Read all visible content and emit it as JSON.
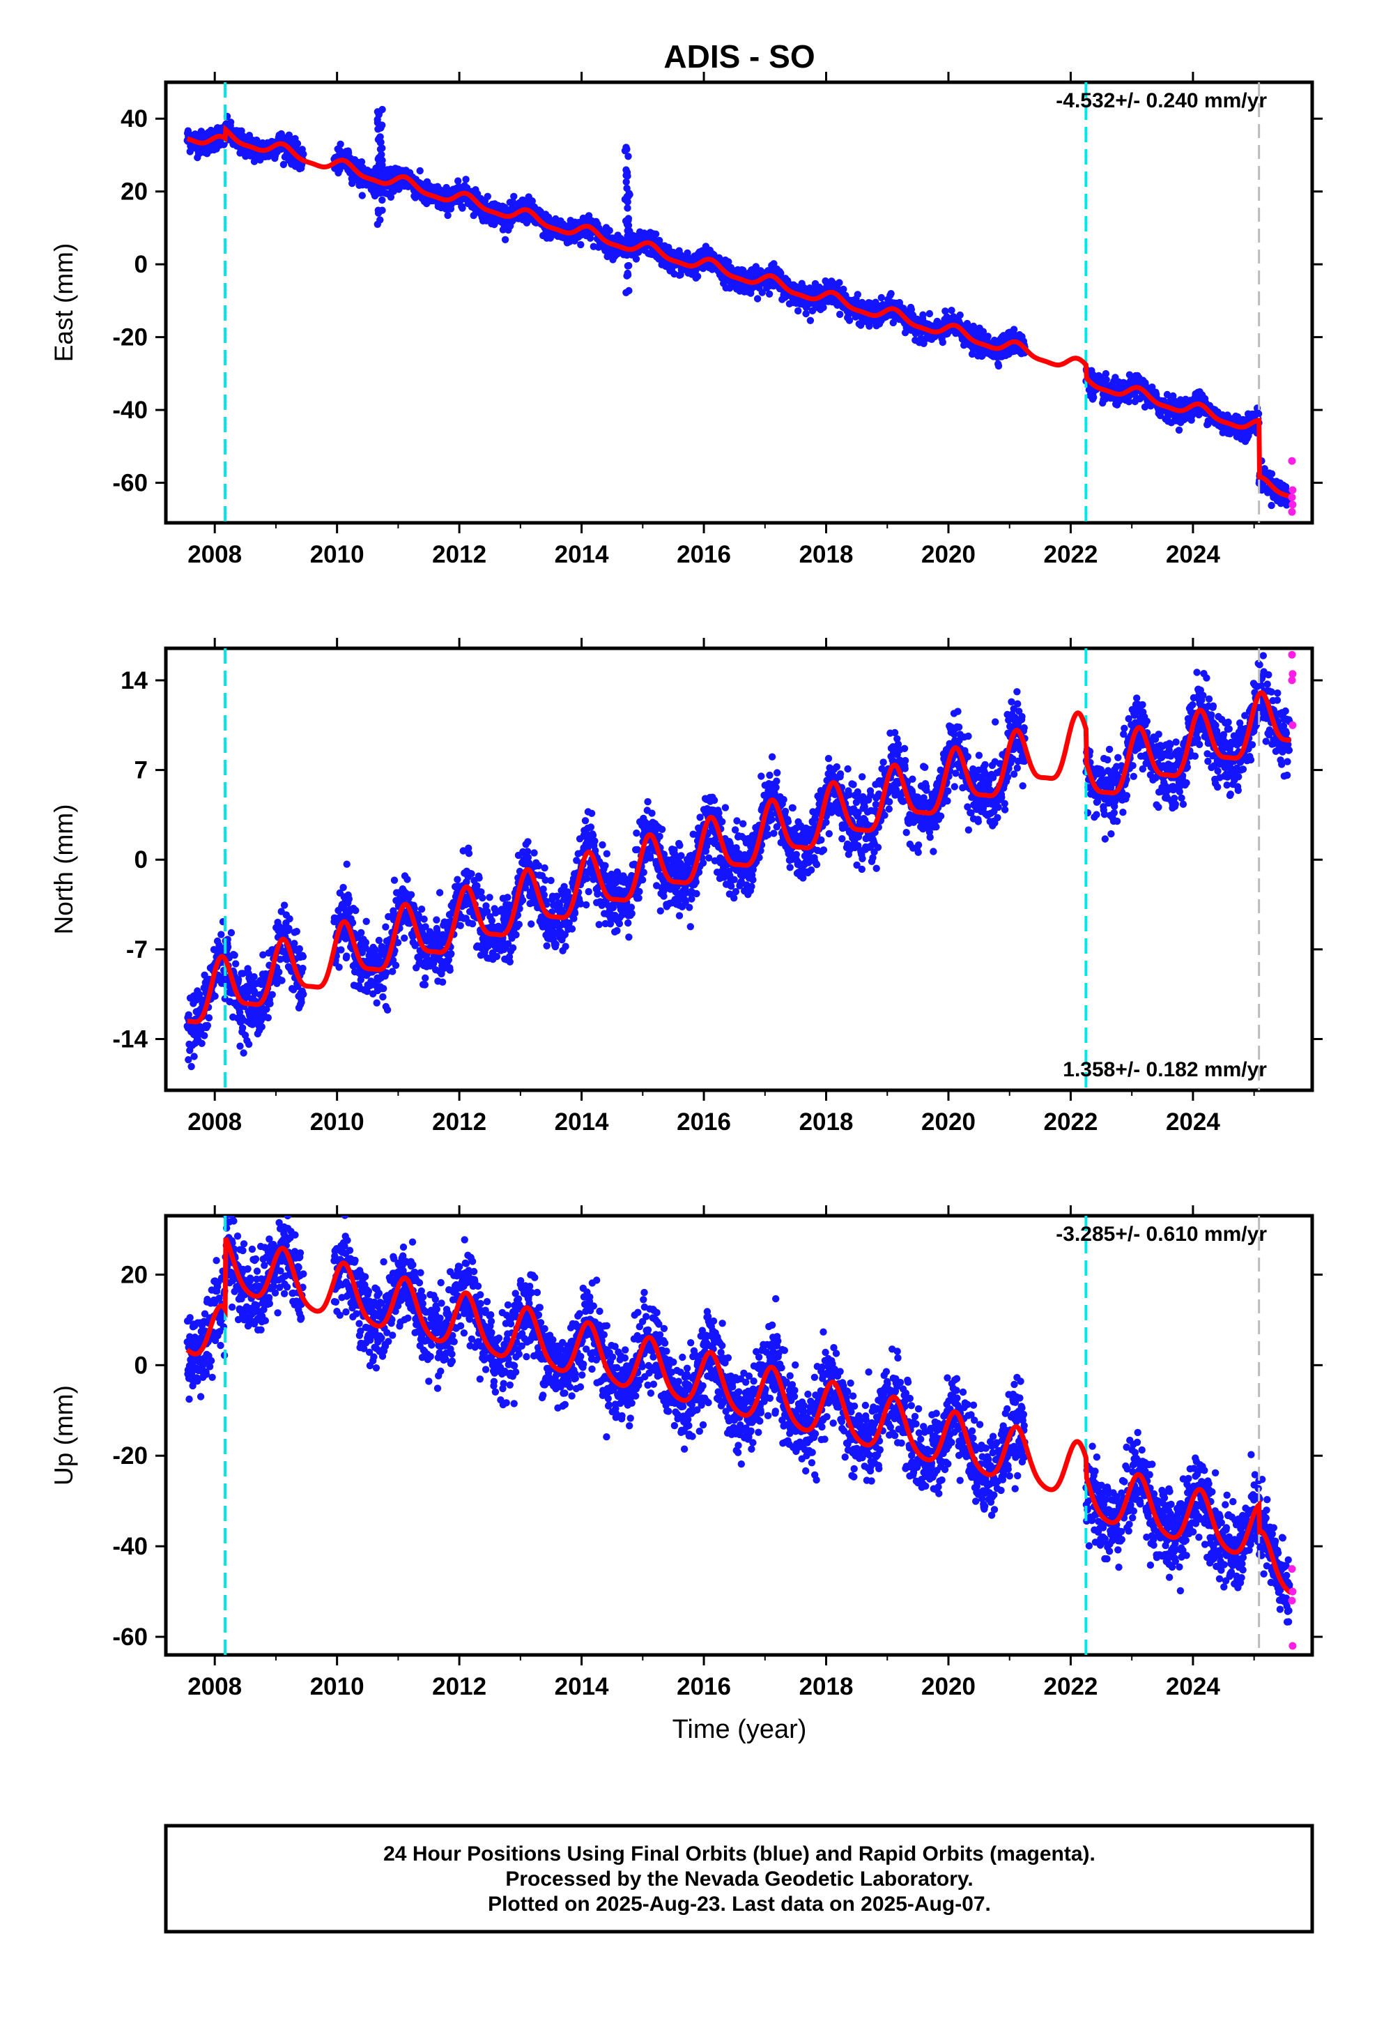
{
  "chart_data": {
    "type": "scatter",
    "title": "ADIS - SO",
    "xlabel": "Time (year)",
    "colors": {
      "final_orbits": "#1414ff",
      "rapid_orbits": "#ff1ee6",
      "model_fit": "#ff0000",
      "event_line": "#00e5e5",
      "rapid_start_line": "#bbbbbb"
    },
    "event_lines": [
      2008.17,
      2022.25
    ],
    "rapid_start_line": 2025.08,
    "xlim": [
      2007.2,
      2025.95
    ],
    "xticks": [
      "2008",
      "2010",
      "2012",
      "2014",
      "2016",
      "2018",
      "2020",
      "2022",
      "2024"
    ],
    "panels": [
      {
        "name": "East",
        "ylabel": "East (mm)",
        "rate_text": "-4.532+/- 0.240 mm/yr",
        "rate_position": "top-right",
        "ylim": [
          -71,
          50
        ],
        "yticks": [
          "40",
          "20",
          "0",
          "-20",
          "-40",
          "-60"
        ],
        "trend": {
          "value_2008": 33.5,
          "slope": -4.532
        },
        "seasonal": {
          "annual_amp": 1.6,
          "semiannual_amp": 0.5
        },
        "offsets": [
          {
            "year": 2008.17,
            "shift": 2.5
          },
          {
            "year": 2022.25,
            "shift": -3.5
          },
          {
            "year": 2025.08,
            "shift": -15.5
          }
        ],
        "scatter_sd": 1.6,
        "outlier_episodes": [
          {
            "year": 2014.75,
            "range": [
              -9,
              34
            ]
          },
          {
            "year": 2010.7,
            "range": [
              10,
              43
            ]
          }
        ],
        "rapid_orbit_values": [
          -54,
          -62,
          -64,
          -66,
          -68
        ]
      },
      {
        "name": "North",
        "ylabel": "North (mm)",
        "rate_text": "1.358+/- 0.182 mm/yr",
        "rate_position": "bottom-right",
        "ylim": [
          -18,
          16.5
        ],
        "yticks": [
          "14",
          "7",
          "0",
          "-7",
          "-14"
        ],
        "trend": {
          "value_2008": -10.5,
          "slope": 1.358
        },
        "seasonal": {
          "annual_amp": 2.2,
          "semiannual_amp": 0.6
        },
        "offsets": [
          {
            "year": 2022.25,
            "shift": -2.5
          }
        ],
        "scatter_sd": 1.3,
        "outlier_episodes": [],
        "rapid_orbit_values": [
          16,
          14.5,
          14,
          10.5
        ]
      },
      {
        "name": "Up",
        "ylabel": "Up (mm)",
        "rate_text": "-3.285+/- 0.610 mm/yr",
        "rate_position": "top-right",
        "ylim": [
          -64,
          33
        ],
        "yticks": [
          "20",
          "0",
          "-20",
          "-40",
          "-60"
        ],
        "trend": {
          "value_2008": 6.5,
          "slope": -3.285
        },
        "seasonal": {
          "annual_amp": 6.0,
          "semiannual_amp": 1.0
        },
        "offsets": [
          {
            "year": 2008.17,
            "shift": 16
          },
          {
            "year": 2022.25,
            "shift": -4
          },
          {
            "year": 2025.08,
            "shift": -6
          }
        ],
        "scatter_sd": 4.5,
        "outlier_episodes": [],
        "rapid_orbit_values": [
          -45,
          -50,
          -52,
          -62
        ]
      }
    ],
    "data_span": [
      2007.55,
      2025.6
    ],
    "data_gaps": [
      [
        2009.45,
        2009.95
      ],
      [
        2021.25,
        2022.25
      ]
    ]
  },
  "footer": {
    "line1": "24 Hour Positions Using Final Orbits (blue) and Rapid Orbits (magenta).",
    "line2": "Processed by the Nevada Geodetic Laboratory.",
    "line3": "Plotted on 2025-Aug-23. Last data on 2025-Aug-07."
  }
}
